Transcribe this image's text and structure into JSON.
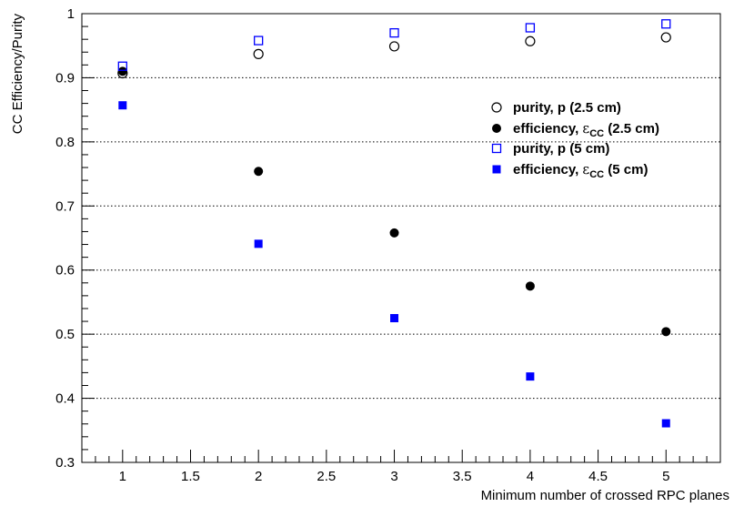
{
  "chart_data": {
    "type": "scatter",
    "title": "",
    "xlabel": "Minimum number of crossed RPC planes",
    "ylabel": "CC Efficiency/Purity",
    "xlim": [
      0.7,
      5.4
    ],
    "ylim": [
      0.3,
      1.0
    ],
    "grid": "horizontal dotted",
    "legend_position": "right",
    "x_ticks": [
      "1",
      "1.5",
      "2",
      "2.5",
      "3",
      "3.5",
      "4",
      "4.5",
      "5"
    ],
    "y_ticks": [
      "0.3",
      "0.4",
      "0.5",
      "0.6",
      "0.7",
      "0.8",
      "0.9",
      "1"
    ],
    "series": [
      {
        "key": "purity_2_5",
        "legend_prefix": "purity, p (2.5 cm)",
        "legend_symbol": "",
        "legend_subscript": "",
        "legend_suffix": "",
        "marker": "open-circle",
        "color": "#000000",
        "x": [
          1,
          2,
          3,
          4,
          5
        ],
        "values": [
          0.907,
          0.937,
          0.949,
          0.957,
          0.963
        ]
      },
      {
        "key": "efficiency_2_5",
        "legend_prefix": "efficiency, ",
        "legend_symbol": "ε",
        "legend_subscript": "CC",
        "legend_suffix": " (2.5 cm)",
        "marker": "filled-circle",
        "color": "#000000",
        "x": [
          1,
          2,
          3,
          4,
          5
        ],
        "values": [
          0.91,
          0.754,
          0.658,
          0.575,
          0.504
        ]
      },
      {
        "key": "purity_5",
        "legend_prefix": "purity, p (5 cm)",
        "legend_symbol": "",
        "legend_subscript": "",
        "legend_suffix": "",
        "marker": "open-square",
        "color": "#0000ff",
        "x": [
          1,
          2,
          3,
          4,
          5
        ],
        "values": [
          0.918,
          0.958,
          0.97,
          0.978,
          0.984
        ]
      },
      {
        "key": "efficiency_5",
        "legend_prefix": "efficiency, ",
        "legend_symbol": "ε",
        "legend_subscript": "CC",
        "legend_suffix": " (5 cm)",
        "marker": "filled-square",
        "color": "#0000ff",
        "x": [
          1,
          2,
          3,
          4,
          5
        ],
        "values": [
          0.857,
          0.641,
          0.525,
          0.434,
          0.361
        ]
      }
    ]
  }
}
